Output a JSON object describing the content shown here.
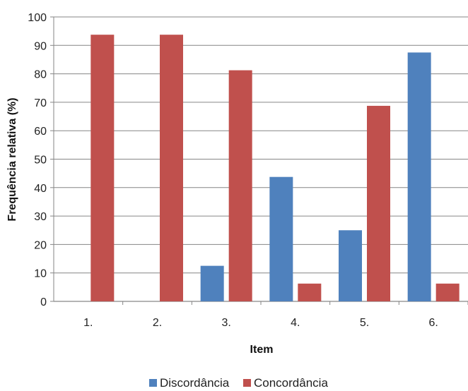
{
  "chart_data": {
    "type": "bar",
    "categories": [
      "1.",
      "2.",
      "3.",
      "4.",
      "5.",
      "6."
    ],
    "series": [
      {
        "name": "Discordância",
        "values": [
          0,
          0,
          12.5,
          43.75,
          25,
          87.5
        ],
        "color": "#4f81bd"
      },
      {
        "name": "Concordância",
        "values": [
          93.75,
          93.75,
          81.25,
          6.25,
          68.75,
          6.25
        ],
        "color": "#c0504d"
      }
    ],
    "xlabel": "Item",
    "ylabel": "Frequência relativa (%)",
    "ylim": [
      0,
      100
    ],
    "yticks": [
      "0",
      "10",
      "20",
      "30",
      "40",
      "50",
      "60",
      "70",
      "80",
      "90",
      "100"
    ],
    "grid": true,
    "legend_position": "bottom"
  }
}
